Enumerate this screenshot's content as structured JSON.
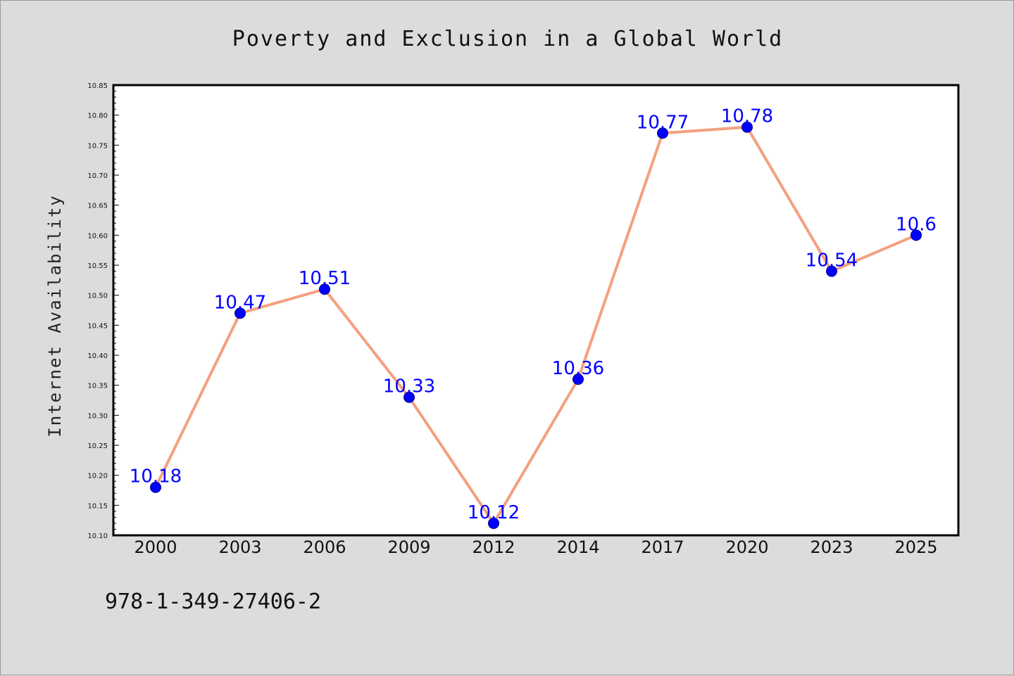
{
  "chart_data": {
    "type": "line",
    "title": "Poverty and Exclusion in a Global World",
    "xlabel": "",
    "ylabel": "Internet Availability",
    "categories": [
      "2000",
      "2003",
      "2006",
      "2009",
      "2012",
      "2014",
      "2017",
      "2020",
      "2023",
      "2025"
    ],
    "series": [
      {
        "values": [
          10.18,
          10.47,
          10.51,
          10.33,
          10.12,
          10.36,
          10.77,
          10.78,
          10.54,
          10.6
        ],
        "labels": [
          "10.18",
          "10.47",
          "10.51",
          "10.33",
          "10.12",
          "10.36",
          "10.77",
          "10.78",
          "10.54",
          "10.6"
        ]
      }
    ],
    "ylim": [
      10.1,
      10.85
    ],
    "yticks": [
      "10.10",
      "10.15",
      "10.20",
      "10.25",
      "10.30",
      "10.35",
      "10.40",
      "10.45",
      "10.50",
      "10.55",
      "10.60",
      "10.65",
      "10.70",
      "10.75",
      "10.80",
      "10.85"
    ],
    "grid": false,
    "legend": "none",
    "colors": {
      "line": "#f4a080",
      "marker": "#0000ff",
      "marker_edge": "#00008b",
      "label": "#0000ff",
      "background": "#dcdcdc",
      "plot_background": "#ffffff"
    }
  },
  "footer": {
    "isbn": "978-1-349-27406-2"
  }
}
